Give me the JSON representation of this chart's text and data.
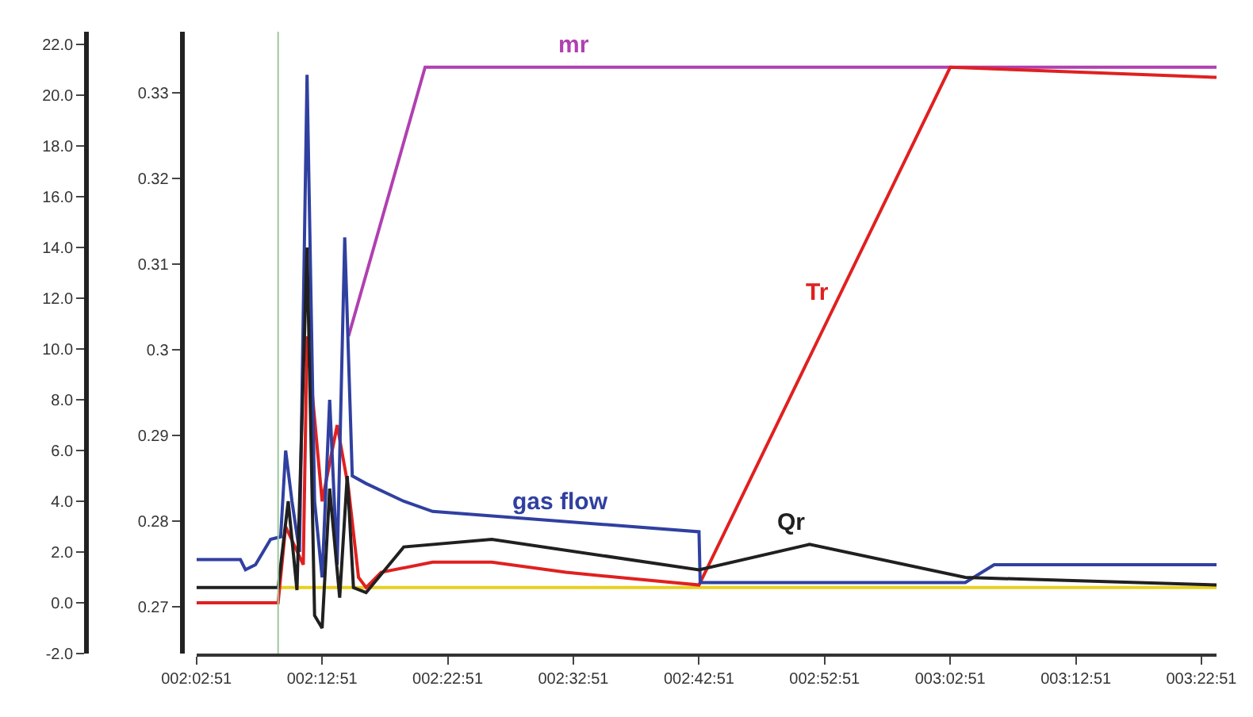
{
  "chart_data": {
    "type": "line",
    "xlim": [
      2.0475,
      3.4008
    ],
    "xticks": [
      {
        "value": 2.0475,
        "label": "002:02:51"
      },
      {
        "value": 2.2142,
        "label": "002:12:51"
      },
      {
        "value": 2.3808,
        "label": "002:22:51"
      },
      {
        "value": 2.5475,
        "label": "002:32:51"
      },
      {
        "value": 2.7142,
        "label": "002:42:51"
      },
      {
        "value": 2.8808,
        "label": "002:52:51"
      },
      {
        "value": 3.0475,
        "label": "003:02:51"
      },
      {
        "value": 3.2142,
        "label": "003:12:51"
      },
      {
        "value": 3.3808,
        "label": "003:22:51"
      }
    ],
    "ylim": [
      -2,
      22.5
    ],
    "yticks": [
      {
        "value": -2,
        "label": "-2.0"
      },
      {
        "value": 0,
        "label": "0.0"
      },
      {
        "value": 2,
        "label": "2.0"
      },
      {
        "value": 4,
        "label": "4.0"
      },
      {
        "value": 6,
        "label": "6.0"
      },
      {
        "value": 8,
        "label": "8.0"
      },
      {
        "value": 10,
        "label": "10.0"
      },
      {
        "value": 12,
        "label": "12.0"
      },
      {
        "value": 14,
        "label": "14.0"
      },
      {
        "value": 16,
        "label": "16.0"
      },
      {
        "value": 18,
        "label": "18.0"
      },
      {
        "value": 20,
        "label": "20.0"
      },
      {
        "value": 22,
        "label": "22.0"
      }
    ],
    "y2lim": [
      0.2645,
      0.3371
    ],
    "y2ticks": [
      0.27,
      0.28,
      0.29,
      0.3,
      0.31,
      0.32,
      0.33
    ],
    "marker": "none",
    "line_style": "solid",
    "ref_lines": [
      {
        "axis": "x",
        "value": 2.1558,
        "color": "#9cc89c"
      }
    ],
    "series": [
      {
        "color": "#e8d020",
        "x": [
          2.1558,
          3.4008
        ],
        "values": [
          0.6,
          0.6
        ]
      },
      {
        "color": "#b040b0",
        "x": [
          2.2492,
          2.3508,
          3.4008
        ],
        "values": [
          10.5,
          21.1,
          21.1
        ]
      },
      {
        "color": "#e02020",
        "x": [
          2.0475,
          2.1558,
          2.1658,
          2.1892,
          2.1942,
          2.2142,
          2.2342,
          2.2492,
          2.2625,
          2.2725,
          2.2925,
          2.3608,
          2.4392,
          2.5375,
          2.7142,
          3.0475,
          3.4008
        ],
        "values": [
          0,
          0,
          3,
          1.5,
          10.5,
          4,
          7,
          4.5,
          1,
          0.6,
          1.2,
          1.6,
          1.6,
          1.2,
          0.7,
          21.1,
          20.7
        ]
      },
      {
        "color": "#3040a0",
        "x": [
          2.0475,
          2.1058,
          2.1125,
          2.1258,
          2.1458,
          2.1592,
          2.1658,
          2.1742,
          2.1842,
          2.1942,
          2.2042,
          2.2142,
          2.2242,
          2.2342,
          2.2442,
          2.2542,
          2.2725,
          2.3225,
          2.3608,
          2.7142,
          2.7158,
          3.0675,
          3.1058,
          3.4008
        ],
        "values": [
          1.7,
          1.7,
          1.3,
          1.5,
          2.5,
          2.6,
          6,
          4,
          2,
          20.8,
          4,
          1,
          8,
          1.5,
          14.4,
          5,
          4.7,
          4,
          3.6,
          2.8,
          0.8,
          0.8,
          1.5,
          1.5
        ]
      },
      {
        "color": "#202020",
        "x": [
          2.0475,
          2.1558,
          2.1692,
          2.1808,
          2.1942,
          2.2042,
          2.2142,
          2.2242,
          2.2375,
          2.2475,
          2.2558,
          2.2725,
          2.3225,
          2.4392,
          2.7142,
          2.8608,
          3.0675,
          3.4008
        ],
        "values": [
          0.6,
          0.6,
          4,
          0.5,
          14,
          -0.5,
          -1,
          4.5,
          0.2,
          5,
          0.6,
          0.4,
          2.2,
          2.5,
          1.3,
          2.3,
          1,
          0.7
        ]
      }
    ],
    "annotations": [
      {
        "text": "mr",
        "x": 2.5725,
        "y": 21.1
      },
      {
        "text": "Tr",
        "x": 2.8892,
        "y": 11.4
      },
      {
        "text": "gas flow",
        "x": 2.5975,
        "y": 3.1
      },
      {
        "text": "Qr",
        "x": 2.8608,
        "y": 2.3
      }
    ]
  }
}
